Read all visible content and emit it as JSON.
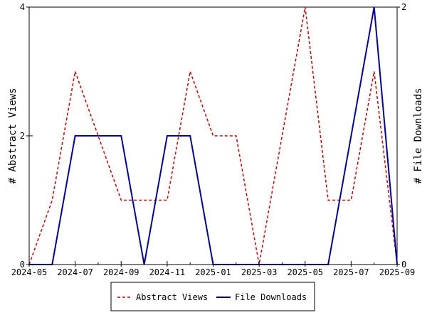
{
  "chart_data": {
    "type": "line",
    "x": [
      "2024-05",
      "2024-06",
      "2024-07",
      "2024-08",
      "2024-09",
      "2024-10",
      "2024-11",
      "2024-12",
      "2025-01",
      "2025-02",
      "2025-03",
      "2025-04",
      "2025-05",
      "2025-06",
      "2025-07",
      "2025-08",
      "2025-09"
    ],
    "x_tick_labels": [
      "2024-05",
      "2024-07",
      "2024-09",
      "2024-11",
      "2025-01",
      "2025-03",
      "2025-05",
      "2025-07",
      "2025-09"
    ],
    "xlim": [
      "2024-05",
      "2025-09"
    ],
    "ylabel": "# Abstract Views",
    "y2label": "# File Downloads",
    "ylim": [
      0,
      4
    ],
    "y2lim": [
      0,
      2
    ],
    "y_ticks": [
      "0",
      "2",
      "4"
    ],
    "y2_ticks": [
      "0",
      "2"
    ],
    "grid": false,
    "legend_position": "bottom-center",
    "series": [
      {
        "name": "Abstract Views",
        "axis": "left",
        "color": "#cc0000",
        "style": "dashed",
        "values": [
          0,
          1,
          3,
          2,
          1,
          1,
          1,
          3,
          2,
          2,
          0,
          2,
          4,
          1,
          1,
          3,
          0
        ]
      },
      {
        "name": "File Downloads",
        "axis": "right",
        "color": "#0000aa",
        "style": "solid",
        "values": [
          0,
          0,
          1,
          1,
          1,
          0,
          1,
          1,
          0,
          0,
          0,
          0,
          0,
          0,
          1,
          2,
          0
        ]
      }
    ]
  }
}
